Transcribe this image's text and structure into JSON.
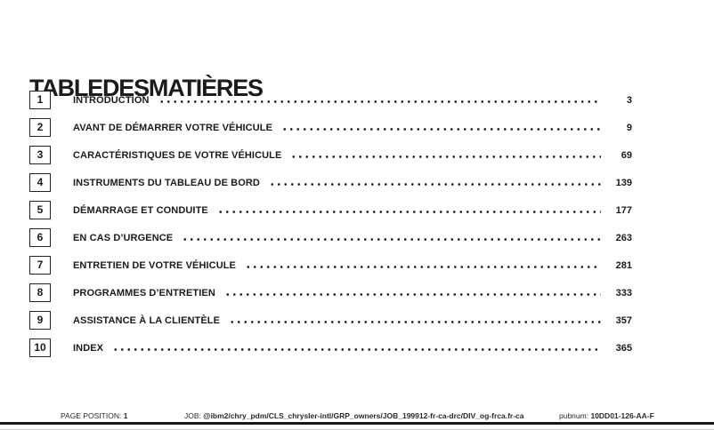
{
  "page": {
    "title": "TABLEDESMATIÈRES"
  },
  "toc": {
    "entries": [
      {
        "num": "1",
        "label": "INTRODUCTION",
        "page": "3"
      },
      {
        "num": "2",
        "label": "AVANT DE DÉMARRER VOTRE VÉHICULE",
        "page": "9"
      },
      {
        "num": "3",
        "label": "CARACTÉRISTIQUES DE VOTRE VÉHICULE",
        "page": "69"
      },
      {
        "num": "4",
        "label": "INSTRUMENTS DU TABLEAU DE BORD",
        "page": "139"
      },
      {
        "num": "5",
        "label": "DÉMARRAGE ET CONDUITE",
        "page": "177"
      },
      {
        "num": "6",
        "label": "EN CAS D’URGENCE",
        "page": "263"
      },
      {
        "num": "7",
        "label": "ENTRETIEN DE VOTRE VÉHICULE",
        "page": "281"
      },
      {
        "num": "8",
        "label": "PROGRAMMES D’ENTRETIEN",
        "page": "333"
      },
      {
        "num": "9",
        "label": "ASSISTANCE À LA CLIENTÈLE",
        "page": "357"
      },
      {
        "num": "10",
        "label": "INDEX",
        "page": "365"
      }
    ]
  },
  "footer": {
    "page_position_label": "PAGE POSITION:",
    "page_position_value": "1",
    "job_label": "JOB:",
    "job_value": "@ibm2/chry_pdm/CLS_chrysler-intl/GRP_owners/JOB_199912-fr-ca-drc/DIV_og-frca.fr-ca",
    "pubnum_label": "pubnum:",
    "pubnum_value": "10DD01-126-AA-F"
  }
}
